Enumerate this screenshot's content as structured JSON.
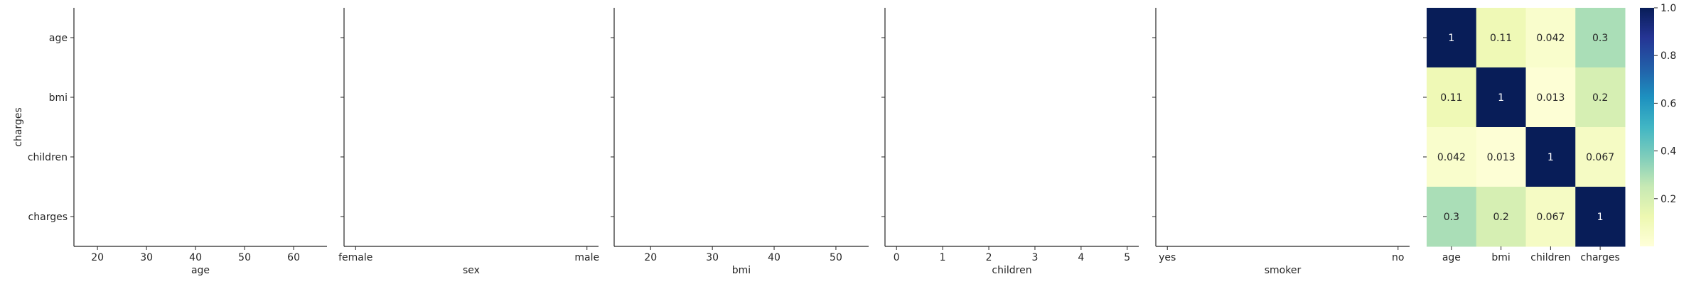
{
  "chart_data": [
    {
      "type": "scatter",
      "xlabel": "age",
      "ylabel": "charges",
      "x_ticks": [
        "20",
        "30",
        "40",
        "50",
        "60"
      ],
      "x_tick_values": [
        20,
        30,
        40,
        50,
        60
      ],
      "xlim": [
        15.2,
        66.8
      ],
      "y_ticks": [
        "age",
        "bmi",
        "children",
        "charges"
      ],
      "points": []
    },
    {
      "type": "scatter",
      "xlabel": "sex",
      "ylabel": "",
      "x_ticks": [
        "female",
        "male"
      ],
      "x_tick_values": [
        0,
        1
      ],
      "xlim": [
        -0.05,
        1.05
      ],
      "y_ticks": [
        "age",
        "bmi",
        "children",
        "charges"
      ],
      "points": []
    },
    {
      "type": "scatter",
      "xlabel": "bmi",
      "ylabel": "",
      "x_ticks": [
        "20",
        "30",
        "40",
        "50"
      ],
      "x_tick_values": [
        20,
        30,
        40,
        50
      ],
      "xlim": [
        14.1,
        55.3
      ],
      "y_ticks": [
        "age",
        "bmi",
        "children",
        "charges"
      ],
      "points": []
    },
    {
      "type": "scatter",
      "xlabel": "children",
      "ylabel": "",
      "x_ticks": [
        "0",
        "1",
        "2",
        "3",
        "4",
        "5"
      ],
      "x_tick_values": [
        0,
        1,
        2,
        3,
        4,
        5
      ],
      "xlim": [
        -0.25,
        5.25
      ],
      "y_ticks": [
        "age",
        "bmi",
        "children",
        "charges"
      ],
      "points": []
    },
    {
      "type": "scatter",
      "xlabel": "smoker",
      "ylabel": "",
      "x_ticks": [
        "yes",
        "no"
      ],
      "x_tick_values": [
        0,
        1
      ],
      "xlim": [
        -0.05,
        1.05
      ],
      "y_ticks": [
        "age",
        "bmi",
        "children",
        "charges"
      ],
      "points": []
    },
    {
      "type": "heatmap",
      "x_categories": [
        "age",
        "bmi",
        "children",
        "charges"
      ],
      "y_categories": [
        "age",
        "bmi",
        "children",
        "charges"
      ],
      "values": [
        [
          1,
          0.11,
          0.042,
          0.3
        ],
        [
          0.11,
          1,
          0.013,
          0.2
        ],
        [
          0.042,
          0.013,
          1,
          0.067
        ],
        [
          0.3,
          0.2,
          0.067,
          1
        ]
      ],
      "value_labels": [
        [
          "1",
          "0.11",
          "0.042",
          "0.3"
        ],
        [
          "0.11",
          "1",
          "0.013",
          "0.2"
        ],
        [
          "0.042",
          "0.013",
          "1",
          "0.067"
        ],
        [
          "0.3",
          "0.2",
          "0.067",
          "1"
        ]
      ],
      "colormap": "YlGnBu",
      "colorbar": {
        "range": [
          0,
          1
        ],
        "ticks": [
          0.2,
          0.4,
          0.6,
          0.8,
          1.0
        ],
        "tick_labels": [
          "0.2",
          "0.4",
          "0.6",
          "0.8",
          "1.0"
        ]
      }
    }
  ]
}
